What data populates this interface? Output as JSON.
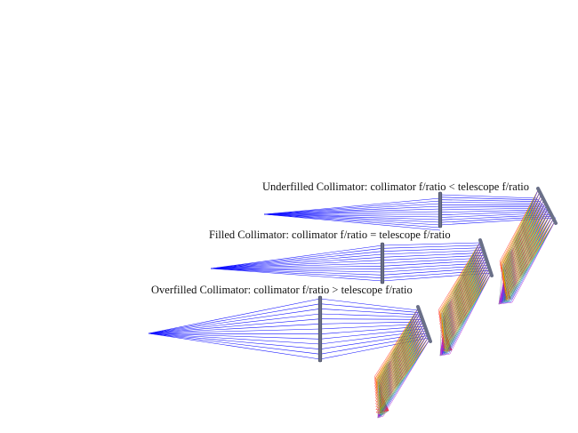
{
  "colors": {
    "background": "#ffffff",
    "ray_primary": "#1010ff",
    "optic": "#6a7088",
    "optic_edge": "#404458",
    "dispersed": [
      "#ff2020",
      "#ff9a00",
      "#c8c800",
      "#20b020",
      "#00b0b0",
      "#2040ff",
      "#b020d0"
    ]
  },
  "diagram": {
    "panels": [
      {
        "id": "underfilled",
        "caption": "Underfilled Collimator: collimator f/ratio < telescope f/ratio"
      },
      {
        "id": "filled",
        "caption": "Filled Collimator: collimator f/ratio = telescope f/ratio"
      },
      {
        "id": "overfilled",
        "caption": "Overfilled Collimator: collimator f/ratio > telescope f/ratio"
      }
    ]
  }
}
